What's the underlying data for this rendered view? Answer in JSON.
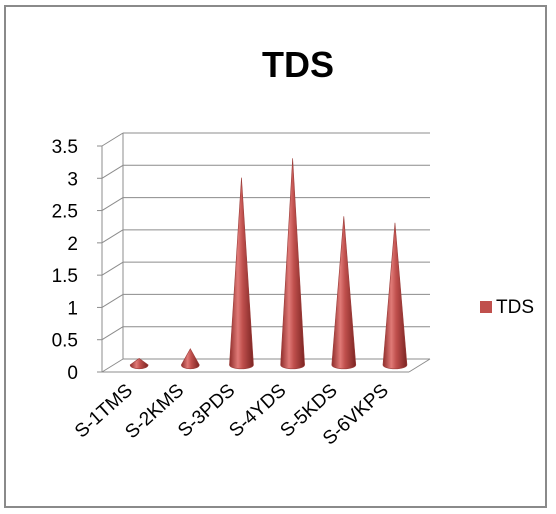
{
  "chart_data": {
    "type": "bar",
    "title": "TDS",
    "categories": [
      "S-1TMS",
      "S-2KMS",
      "S-3PDS",
      "S-4YDS",
      "S-5KDS",
      "S-6VKPS"
    ],
    "series": [
      {
        "name": "TDS",
        "values": [
          0.1,
          0.25,
          2.9,
          3.2,
          2.3,
          2.2
        ],
        "color": "#c0504d"
      }
    ],
    "ylim": [
      0,
      3.5
    ],
    "yticks": [
      "0",
      "0.5",
      "1",
      "1.5",
      "2",
      "2.5",
      "3",
      "3.5"
    ],
    "xlabel": "",
    "ylabel": "",
    "grid": true,
    "legend": "right",
    "style": "3d-cone"
  }
}
